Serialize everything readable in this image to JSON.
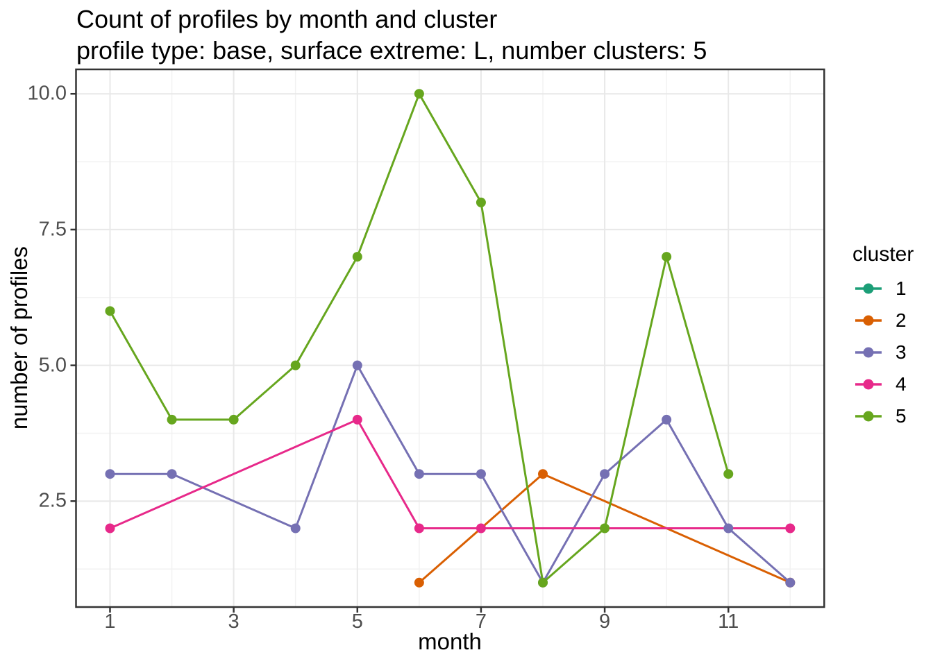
{
  "chart": {
    "title": "Count of profiles by month and cluster",
    "subtitle": "profile type: base, surface extreme: L, number clusters: 5",
    "xlabel": "month",
    "ylabel": "number of profiles"
  },
  "legend": {
    "title": "cluster"
  },
  "colors": {
    "background": "#ffffff",
    "panel_bg": "#ffffff",
    "panel_border": "#333333",
    "grid_major": "#e8e8e8",
    "grid_minor": "#f2f2f2",
    "tick": "#333333",
    "tick_label": "#4d4d4d",
    "text": "#000000"
  },
  "chart_data": {
    "type": "line",
    "title": "Count of profiles by month and cluster",
    "subtitle": "profile type: base, surface extreme: L, number clusters: 5",
    "xlabel": "month",
    "ylabel": "number of profiles",
    "grid": true,
    "x_domain": [
      0.45,
      12.55
    ],
    "y_domain": [
      0.55,
      10.45
    ],
    "x_major_ticks": [
      {
        "value": 1,
        "label": "1"
      },
      {
        "value": 3,
        "label": "3"
      },
      {
        "value": 5,
        "label": "5"
      },
      {
        "value": 7,
        "label": "7"
      },
      {
        "value": 9,
        "label": "9"
      },
      {
        "value": 11,
        "label": "11"
      }
    ],
    "x_minor_ticks": [
      2,
      4,
      6,
      8,
      10,
      12
    ],
    "y_major_ticks": [
      {
        "value": 2.5,
        "label": "2.5"
      },
      {
        "value": 5.0,
        "label": "5.0"
      },
      {
        "value": 7.5,
        "label": "7.5"
      },
      {
        "value": 10.0,
        "label": "10.0"
      }
    ],
    "y_minor_ticks": [
      1.25,
      3.75,
      6.25,
      8.75
    ],
    "legend": {
      "title": "cluster",
      "position": "right"
    },
    "series": [
      {
        "name": "1",
        "color": "#1B9E77",
        "points": []
      },
      {
        "name": "2",
        "color": "#D95F02",
        "points": [
          [
            6,
            1
          ],
          [
            8,
            3
          ],
          [
            12,
            1
          ]
        ]
      },
      {
        "name": "3",
        "color": "#7570B3",
        "points": [
          [
            1,
            3
          ],
          [
            2,
            3
          ],
          [
            4,
            2
          ],
          [
            5,
            5
          ],
          [
            6,
            3
          ],
          [
            7,
            3
          ],
          [
            8,
            1
          ],
          [
            9,
            3
          ],
          [
            10,
            4
          ],
          [
            11,
            2
          ],
          [
            12,
            1
          ]
        ]
      },
      {
        "name": "4",
        "color": "#E7298A",
        "points": [
          [
            1,
            2
          ],
          [
            5,
            4
          ],
          [
            6,
            2
          ],
          [
            7,
            2
          ],
          [
            12,
            2
          ]
        ]
      },
      {
        "name": "5",
        "color": "#66A61E",
        "points": [
          [
            1,
            6
          ],
          [
            2,
            4
          ],
          [
            3,
            4
          ],
          [
            4,
            5
          ],
          [
            5,
            7
          ],
          [
            6,
            10
          ],
          [
            7,
            8
          ],
          [
            8,
            1
          ],
          [
            9,
            2
          ],
          [
            10,
            7
          ],
          [
            11,
            3
          ]
        ]
      }
    ]
  }
}
